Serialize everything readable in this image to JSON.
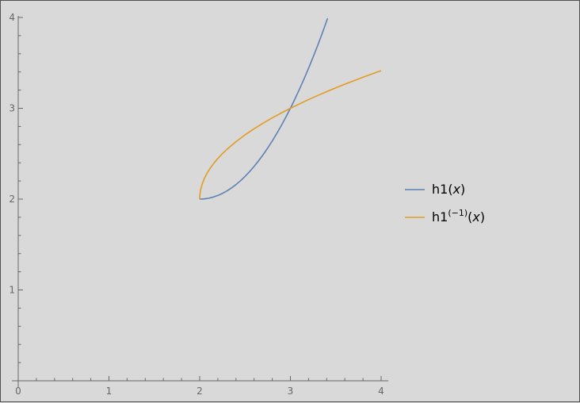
{
  "chart_data": {
    "type": "line",
    "title": "",
    "xlabel": "",
    "ylabel": "",
    "xlim": [
      0,
      4.08
    ],
    "ylim": [
      0,
      4
    ],
    "xticks": [
      "0",
      "1",
      "2",
      "3",
      "4"
    ],
    "yticks": [
      "1",
      "2",
      "3",
      "4"
    ],
    "grid": false,
    "legend": "right",
    "series": [
      {
        "name": "h1(x)",
        "color": "#5e81b5",
        "x": [
          2.0,
          2.05,
          2.1,
          2.15,
          2.2,
          2.25,
          2.3,
          2.35,
          2.4,
          2.45,
          2.5,
          2.55,
          2.6,
          2.65,
          2.7,
          2.75,
          2.8,
          2.85,
          2.9,
          2.95,
          3.0,
          3.05,
          3.1,
          3.15,
          3.2,
          3.25,
          3.3,
          3.35,
          3.41
        ],
        "y": [
          2.0,
          2.0025,
          2.01,
          2.0225,
          2.04,
          2.0625,
          2.09,
          2.1225,
          2.16,
          2.2025,
          2.25,
          2.3025,
          2.36,
          2.4225,
          2.49,
          2.5625,
          2.64,
          2.7225,
          2.81,
          2.9025,
          3.0,
          3.1025,
          3.21,
          3.3225,
          3.44,
          3.5625,
          3.69,
          3.8225,
          3.99
        ]
      },
      {
        "name": "h1(−1)(x)",
        "color": "#e19c24",
        "x": [
          2.0,
          2.002,
          2.01,
          2.025,
          2.05,
          2.08,
          2.12,
          2.16,
          2.2,
          2.25,
          2.3,
          2.4,
          2.5,
          2.6,
          2.7,
          2.8,
          2.9,
          3.0,
          3.1,
          3.2,
          3.3,
          3.4,
          3.5,
          3.6,
          3.7,
          3.8,
          3.9,
          4.0
        ],
        "y": [
          2.0,
          2.0447,
          2.1,
          2.1581,
          2.2236,
          2.2828,
          2.3464,
          2.4,
          2.4472,
          2.5,
          2.5477,
          2.6325,
          2.7071,
          2.7746,
          2.8367,
          2.8944,
          2.9487,
          3.0,
          3.0488,
          3.0954,
          3.1402,
          3.1832,
          3.2247,
          3.2649,
          3.3038,
          3.3416,
          3.3784,
          3.4142
        ]
      }
    ],
    "legend_entries": [
      {
        "base": "h1",
        "sup": "",
        "arg": "x",
        "color": "#5e81b5"
      },
      {
        "base": "h1",
        "sup": "(−1)",
        "arg": "x",
        "color": "#e19c24"
      }
    ]
  }
}
